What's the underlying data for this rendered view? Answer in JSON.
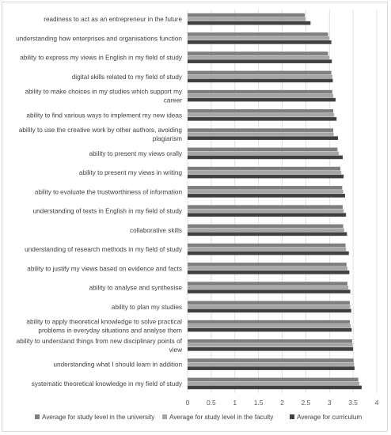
{
  "chart_data": {
    "type": "bar",
    "orientation": "horizontal",
    "categories": [
      [
        "readiness to act as an entrepreneur in the future"
      ],
      [
        "understanding how enterprises and organisations function"
      ],
      [
        "ability to express my views in English in my field of study"
      ],
      [
        "digital skills related to my field of study"
      ],
      [
        "ability to make choices in my studies which support my",
        "career"
      ],
      [
        "ability to find various ways to implement my new ideas"
      ],
      [
        "ability to use the creative work by other authors, avoiding",
        "plagiarism"
      ],
      [
        "ability to present my views orally"
      ],
      [
        "ability to present my views in writing"
      ],
      [
        "ability to evaluate the trustworthiness of information"
      ],
      [
        "understanding of texts in English in my field of study"
      ],
      [
        "collaborative skills"
      ],
      [
        "understanding of research methods in my field of study"
      ],
      [
        "ability to justify my views based on evidence and facts"
      ],
      [
        "ability to analyse and synthesise"
      ],
      [
        "ability to plan my studies"
      ],
      [
        "ability to apply theoretical knowledge to solve practical",
        "problems in everyday situations and analyse them"
      ],
      [
        "ability to understand things from new disciplinary points of",
        "view"
      ],
      [
        "understanding what I should learn in addition"
      ],
      [
        "systematic theoretical knowledge in my field of study"
      ]
    ],
    "series": [
      {
        "name": "Average for study level in the university",
        "color": "#7f7f7f",
        "values": [
          2.48,
          2.97,
          2.97,
          3.04,
          3.06,
          3.08,
          3.08,
          3.17,
          3.23,
          3.27,
          3.28,
          3.29,
          3.34,
          3.36,
          3.38,
          3.43,
          3.43,
          3.48,
          3.51,
          3.61
        ]
      },
      {
        "name": "Average for study level in the faculty",
        "color": "#a6a6a6",
        "values": [
          2.49,
          3.0,
          3.0,
          3.06,
          3.08,
          3.1,
          3.09,
          3.2,
          3.25,
          3.29,
          3.3,
          3.31,
          3.35,
          3.38,
          3.4,
          3.44,
          3.45,
          3.49,
          3.52,
          3.63
        ]
      },
      {
        "name": "Average for curriculum",
        "color": "#404040",
        "values": [
          2.6,
          3.04,
          3.05,
          3.07,
          3.13,
          3.15,
          3.18,
          3.28,
          3.3,
          3.33,
          3.35,
          3.37,
          3.41,
          3.42,
          3.44,
          3.46,
          3.47,
          3.5,
          3.53,
          3.68
        ]
      }
    ],
    "xlim": [
      0,
      4
    ],
    "xticks": [
      "0",
      "0.5",
      "1",
      "1.5",
      "2",
      "2.5",
      "3",
      "3.5",
      "4"
    ],
    "grid": "vertical",
    "legend": "bottom"
  }
}
